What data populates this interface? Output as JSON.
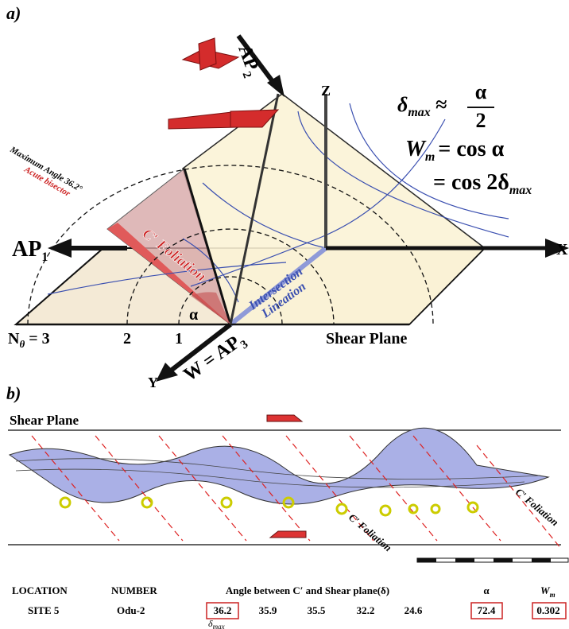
{
  "panel_a": {
    "label": "a)",
    "ap2": {
      "text": "AP",
      "sub": "2"
    },
    "z_axis": "Z",
    "equation_1": {
      "lhs": "δ",
      "lhs_sub": "max",
      "op": "≈",
      "numerator": "α",
      "denominator": "2"
    },
    "equation_2": {
      "lhs": "W",
      "lhs_sub": "m",
      "rhs": "= cos α"
    },
    "equation_3": {
      "rhs": "= cos 2δ",
      "rhs_sub": "max"
    },
    "max_angle": "Maximum Angle 36.2°",
    "acute_bisector": "Acute bisector",
    "ap1": {
      "text": "AP",
      "sub": "1"
    },
    "x_axis": "X",
    "c_foliation": "C′ Foliation",
    "intersection": "Intersection",
    "lineation": "Lineation",
    "alpha": "α",
    "n_theta": {
      "text": "N",
      "sub": "θ",
      "suffix": " = 3"
    },
    "n2": "2",
    "n1": "1",
    "shear_plane": "Shear Plane",
    "y_axis": "Y",
    "ap3": {
      "text": "W = AP",
      "sub": "3"
    }
  },
  "panel_b": {
    "label": "b)",
    "shear_plane": "Shear Plane",
    "c_foliation_labels": [
      "C′ Foliation",
      "C′ Foliation"
    ]
  },
  "table": {
    "headers": {
      "location": "LOCATION",
      "number": "NUMBER",
      "angle": "Angle between C′ and Shear plane(δ)",
      "alpha": "α",
      "wm": {
        "text": "W",
        "sub": "m"
      }
    },
    "row": [
      "SITE 5",
      "Odu-2",
      36.2,
      35.9,
      35.5,
      32.2,
      24.6,
      72.4,
      0.302
    ],
    "note": {
      "text": "δ",
      "sub": "max"
    }
  }
}
